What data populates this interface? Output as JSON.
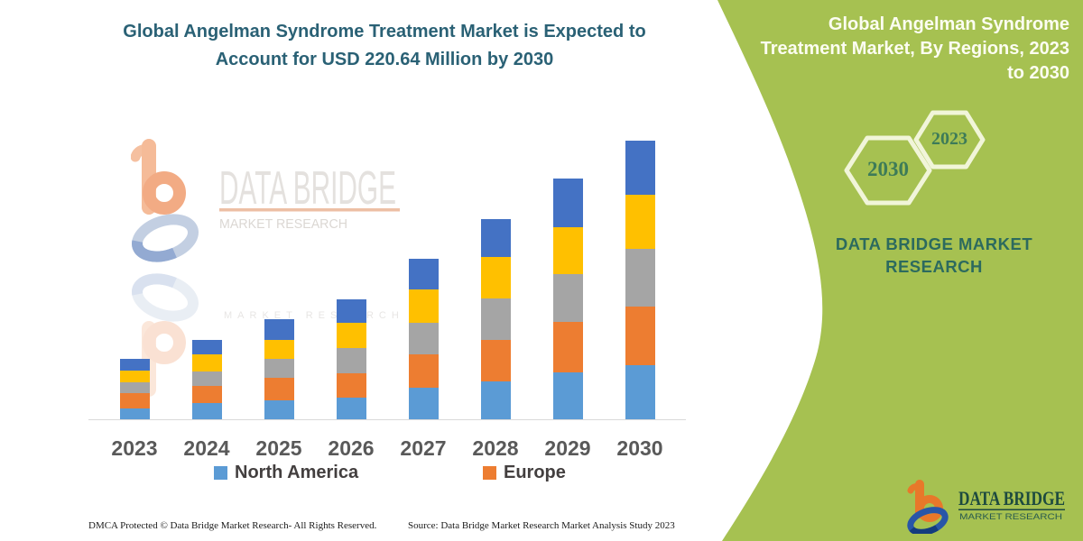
{
  "title": {
    "line1": "Global Angelman Syndrome Treatment Market is Expected to",
    "line2": "Account for USD 220.64 Million by 2030"
  },
  "chart_data": {
    "type": "bar",
    "stacked": true,
    "title": "Global Angelman Syndrome Treatment Market is Expected to Account for USD 220.64 Million by 2030",
    "unit": "USD Million",
    "categories": [
      "2023",
      "2024",
      "2025",
      "2026",
      "2027",
      "2028",
      "2029",
      "2030"
    ],
    "series": [
      {
        "name": "North America",
        "color": "#5b9bd5",
        "values": [
          8.6,
          12.9,
          15.0,
          17.1,
          25.0,
          30.0,
          37.1,
          42.8
        ]
      },
      {
        "name": "Europe",
        "color": "#ed7d31",
        "values": [
          12.1,
          13.6,
          17.9,
          19.3,
          26.4,
          32.8,
          40.0,
          46.4
        ]
      },
      {
        "name": "(unlabeled series 3)",
        "color": "#a5a5a5",
        "values": [
          8.6,
          11.4,
          15.0,
          20.0,
          25.0,
          32.8,
          37.8,
          45.7
        ]
      },
      {
        "name": "(unlabeled series 4)",
        "color": "#ffc000",
        "values": [
          9.3,
          13.6,
          15.0,
          20.0,
          26.4,
          32.8,
          37.1,
          42.8
        ]
      },
      {
        "name": "(unlabeled series 5)",
        "color": "#4472c4",
        "values": [
          9.3,
          11.4,
          16.4,
          18.6,
          24.3,
          30.0,
          38.6,
          42.9
        ]
      }
    ],
    "legend": [
      "North America",
      "Europe"
    ],
    "legend_position": "bottom",
    "y_axis_visible": false,
    "x_axis_line": true,
    "totals_estimated": [
      47.9,
      62.9,
      79.3,
      95.0,
      127.1,
      158.4,
      190.6,
      220.64
    ],
    "ylim": [
      0,
      230
    ]
  },
  "side_panel": {
    "background_color": "#a6c151",
    "heading_lines": [
      "Global Angelman Syndrome",
      "Treatment Market, By Regions, 2023",
      "to 2030"
    ],
    "hexagons": [
      {
        "label": "2030"
      },
      {
        "label": "2023"
      }
    ],
    "brand_line1": "DATA BRIDGE MARKET",
    "brand_line2": "RESEARCH"
  },
  "watermark": {
    "brand": "DATA BRIDGE",
    "sub": "MARKET RESEARCH",
    "faint": "MARKET RESEARCH"
  },
  "logo": {
    "brand": "DATA BRIDGE",
    "sub": "MARKET RESEARCH"
  },
  "footer": {
    "left": "DMCA Protected © Data Bridge Market Research-  All Rights Reserved.",
    "right": "Source: Data Bridge Market Research  Market Analysis Study 2023"
  }
}
